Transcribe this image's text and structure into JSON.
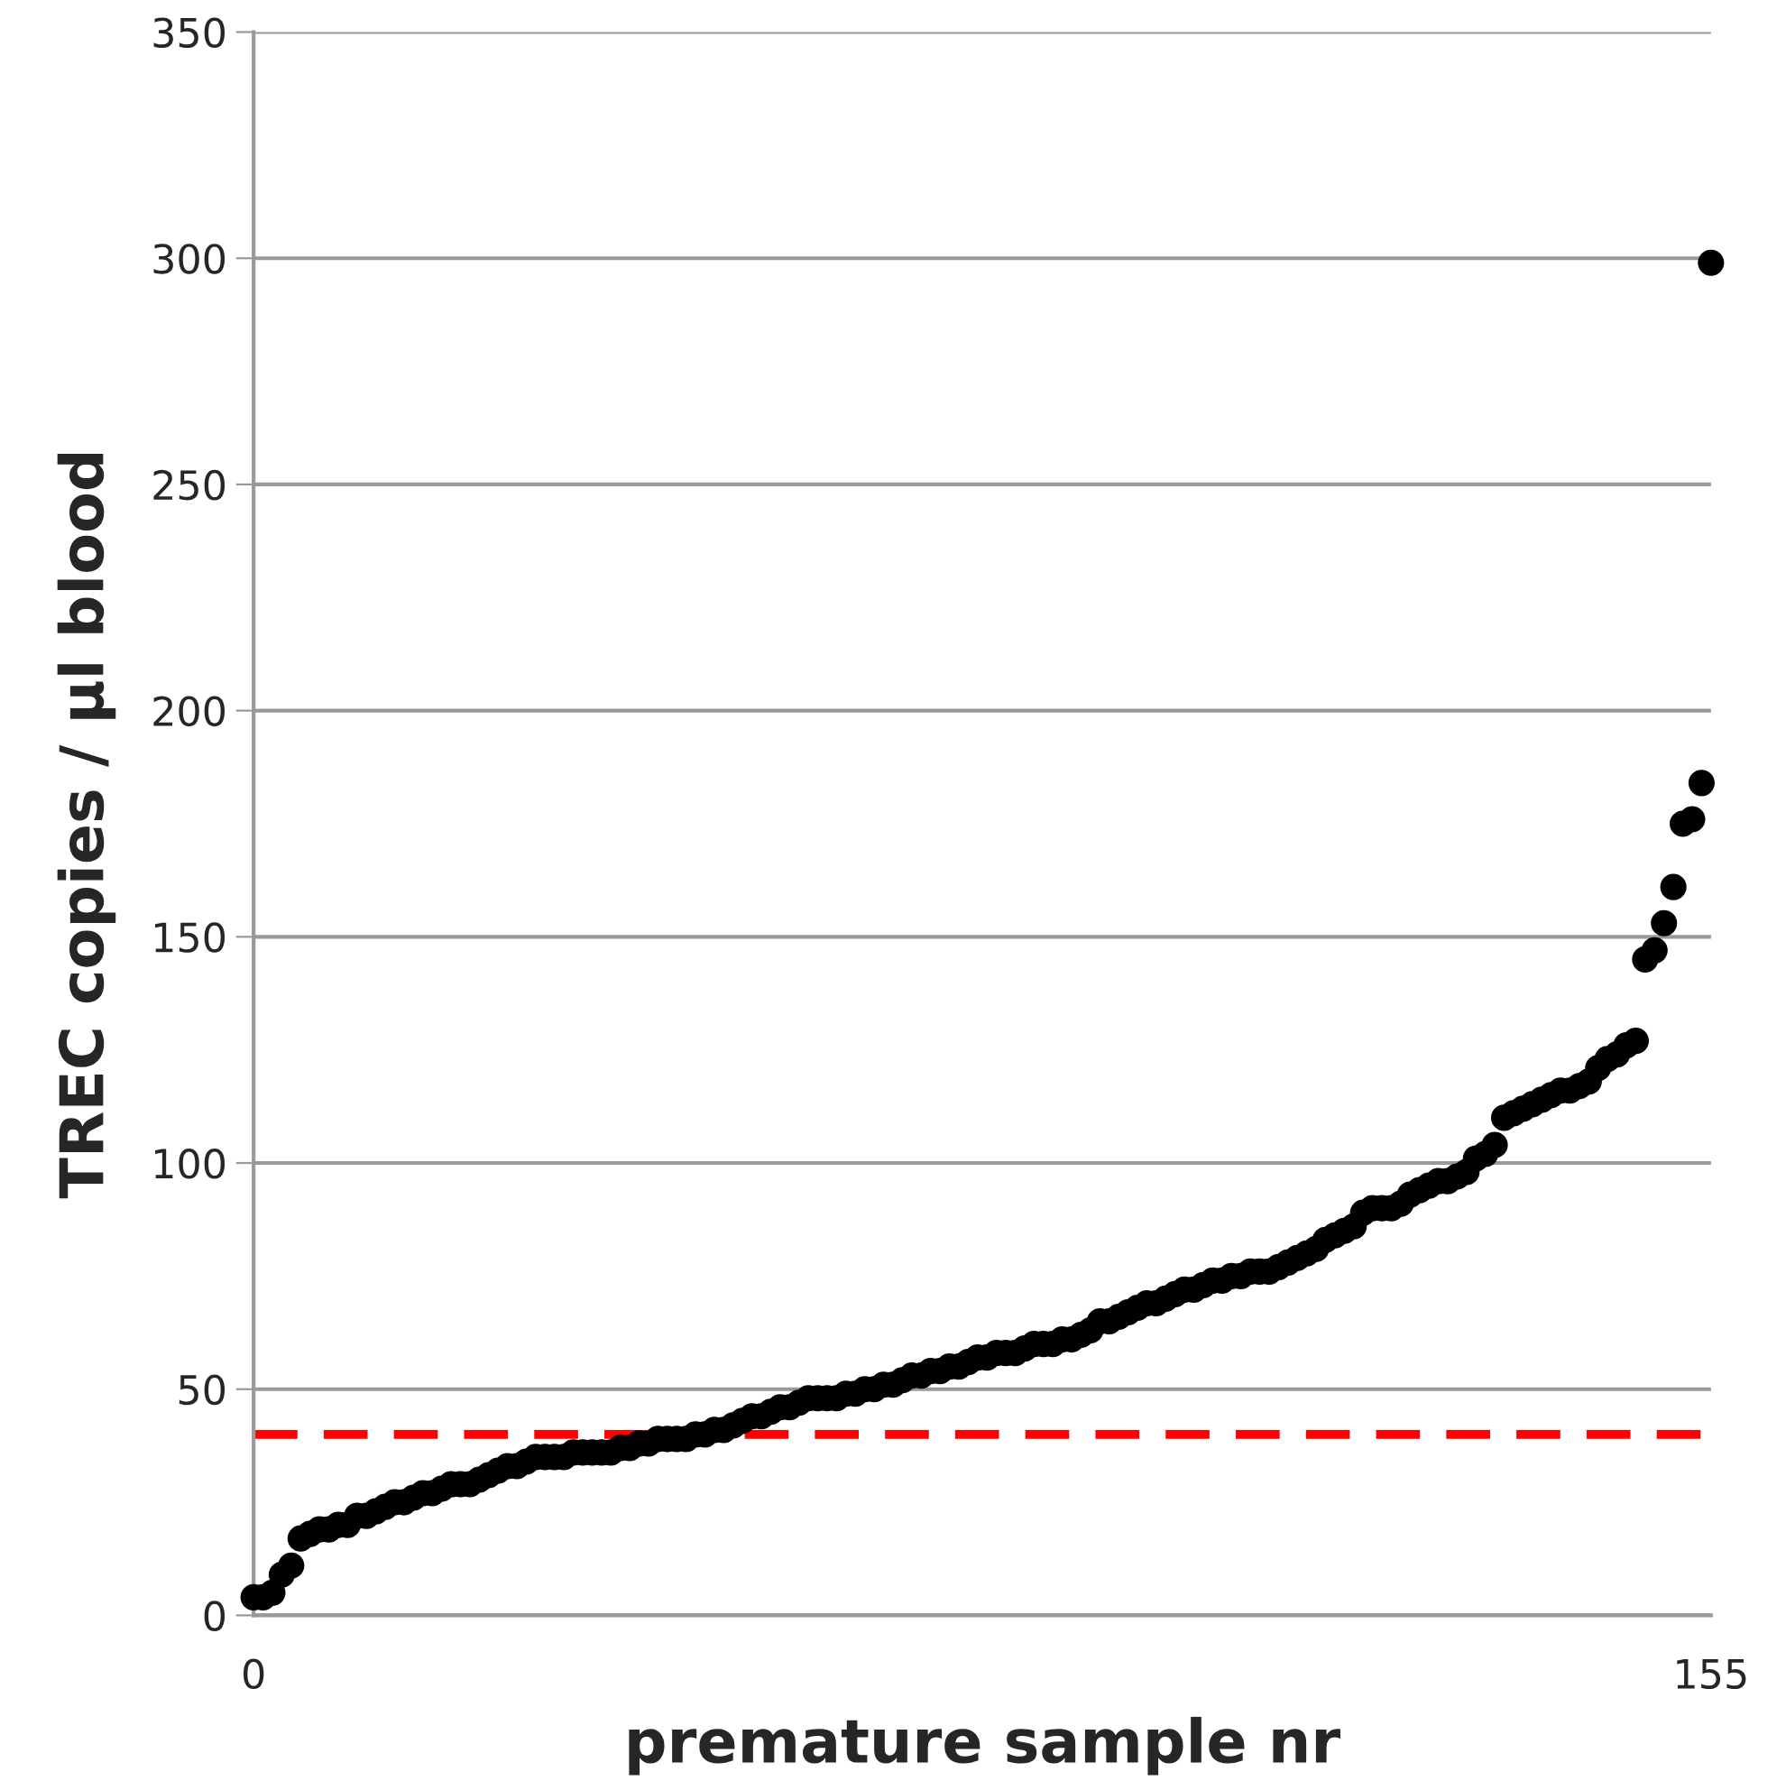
{
  "chart_data": {
    "type": "scatter",
    "xlabel": "premature sample nr",
    "ylabel": "TREC copies / µl blood",
    "x": [
      0,
      1,
      2,
      3,
      4,
      5,
      6,
      7,
      8,
      9,
      10,
      11,
      12,
      13,
      14,
      15,
      16,
      17,
      18,
      19,
      20,
      21,
      22,
      23,
      24,
      25,
      26,
      27,
      28,
      29,
      30,
      31,
      32,
      33,
      34,
      35,
      36,
      37,
      38,
      39,
      40,
      41,
      42,
      43,
      44,
      45,
      46,
      47,
      48,
      49,
      50,
      51,
      52,
      53,
      54,
      55,
      56,
      57,
      58,
      59,
      60,
      61,
      62,
      63,
      64,
      65,
      66,
      67,
      68,
      69,
      70,
      71,
      72,
      73,
      74,
      75,
      76,
      77,
      78,
      79,
      80,
      81,
      82,
      83,
      84,
      85,
      86,
      87,
      88,
      89,
      90,
      91,
      92,
      93,
      94,
      95,
      96,
      97,
      98,
      99,
      100,
      101,
      102,
      103,
      104,
      105,
      106,
      107,
      108,
      109,
      110,
      111,
      112,
      113,
      114,
      115,
      116,
      117,
      118,
      119,
      120,
      121,
      122,
      123,
      124,
      125,
      126,
      127,
      128,
      129,
      130,
      131,
      132,
      133,
      134,
      135,
      136,
      137,
      138,
      139,
      140,
      141,
      142,
      143,
      144,
      145,
      146,
      147,
      148,
      149,
      150,
      151,
      152,
      153,
      154,
      155
    ],
    "series": [
      {
        "color": "#000000",
        "values": [
          4,
          4,
          5,
          9,
          11,
          17,
          18,
          19,
          19,
          20,
          20,
          22,
          22,
          23,
          24,
          25,
          25,
          26,
          27,
          27,
          28,
          29,
          29,
          29,
          30,
          31,
          32,
          33,
          33,
          34,
          35,
          35,
          35,
          35,
          36,
          36,
          36,
          36,
          36,
          37,
          37,
          38,
          38,
          39,
          39,
          39,
          39,
          40,
          40,
          41,
          41,
          42,
          43,
          44,
          44,
          45,
          46,
          46,
          47,
          48,
          48,
          48,
          48,
          49,
          49,
          50,
          50,
          51,
          51,
          52,
          53,
          53,
          54,
          54,
          55,
          55,
          56,
          57,
          57,
          58,
          58,
          58,
          59,
          60,
          60,
          60,
          61,
          61,
          62,
          63,
          65,
          65,
          66,
          67,
          68,
          69,
          69,
          70,
          71,
          72,
          72,
          73,
          74,
          74,
          75,
          75,
          76,
          76,
          76,
          77,
          78,
          79,
          80,
          81,
          83,
          84,
          85,
          86,
          89,
          90,
          90,
          90,
          91,
          93,
          94,
          95,
          96,
          96,
          97,
          98,
          101,
          102,
          104,
          110,
          111,
          112,
          113,
          114,
          115,
          116,
          116,
          117,
          118,
          121,
          123,
          124,
          126,
          127,
          145,
          147,
          153,
          161,
          175,
          176,
          184,
          299
        ]
      }
    ],
    "xlim": [
      0,
      155
    ],
    "xticks": [
      0,
      155
    ],
    "ylim": [
      0,
      350
    ],
    "yticks": [
      0,
      50,
      100,
      150,
      200,
      250,
      300,
      350
    ],
    "grid": "y",
    "marker": "circle",
    "ref_lines": [
      {
        "axis": "y",
        "value": 40,
        "color": "#ff0000",
        "line_style": "dashed"
      }
    ]
  }
}
